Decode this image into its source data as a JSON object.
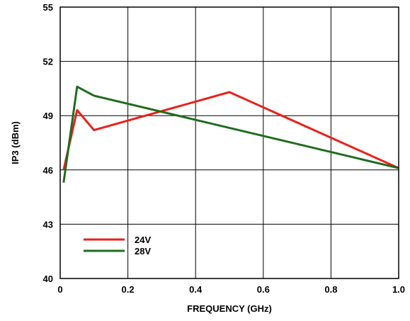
{
  "chart_data": {
    "type": "line",
    "title": "",
    "xlabel": "FREQUENCY (GHz)",
    "ylabel": "IP3 (dBm)",
    "xlim": [
      0,
      1.0
    ],
    "ylim": [
      40,
      55
    ],
    "x_ticks": [
      "0",
      "0.2",
      "0.4",
      "0.6",
      "0.8",
      "1.0"
    ],
    "x_tick_values": [
      0,
      0.2,
      0.4,
      0.6,
      0.8,
      1.0
    ],
    "y_ticks": [
      "40",
      "43",
      "46",
      "49",
      "52",
      "55"
    ],
    "y_tick_values": [
      40,
      43,
      46,
      49,
      52,
      55
    ],
    "grid": true,
    "legend_position": "bottom-left",
    "series": [
      {
        "name": "24V",
        "color": "#e8211c",
        "x": [
          0.01,
          0.05,
          0.1,
          0.5,
          1.0
        ],
        "y": [
          46.0,
          49.3,
          48.2,
          50.3,
          46.1
        ]
      },
      {
        "name": "28V",
        "color": "#1f6b1f",
        "x": [
          0.01,
          0.05,
          0.1,
          1.0
        ],
        "y": [
          45.3,
          50.6,
          50.1,
          46.1
        ]
      }
    ]
  }
}
